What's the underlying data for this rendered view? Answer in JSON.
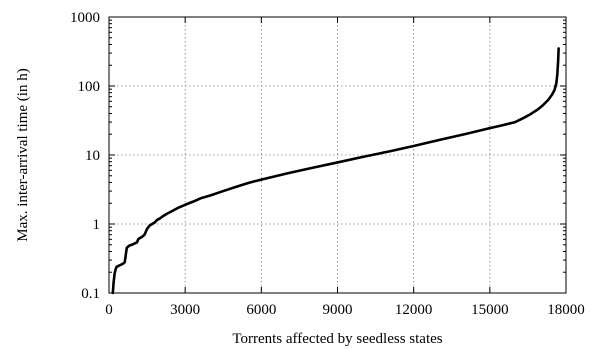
{
  "chart_data": {
    "type": "line",
    "title": "",
    "xlabel": "Torrents affected by seedless states",
    "ylabel": "Max. inter-arrival time (in h)",
    "xlim": [
      0,
      18000
    ],
    "ylim": [
      0.1,
      1000
    ],
    "yscale": "log",
    "grid": true,
    "legend": "none",
    "xticks": [
      0,
      3000,
      6000,
      9000,
      12000,
      15000,
      18000
    ],
    "xtick_labels": [
      "0",
      "3000",
      "6000",
      "9000",
      "12000",
      "15000",
      "18000"
    ],
    "yticks": [
      0.1,
      1,
      10,
      100,
      1000
    ],
    "ytick_labels": [
      "0.1",
      "1",
      "10",
      "100",
      "1000"
    ],
    "series": [
      {
        "color": "#000000",
        "x": [
          150,
          180,
          220,
          260,
          300,
          400,
          500,
          580,
          620,
          700,
          750,
          780,
          820,
          900,
          1000,
          1100,
          1150,
          1200,
          1300,
          1400,
          1500,
          1600,
          1700,
          1800,
          1900,
          2000,
          2100,
          2200,
          2300,
          2500,
          2700,
          3000,
          3300,
          3600,
          4000,
          4500,
          5000,
          5500,
          6000,
          7000,
          8000,
          9000,
          10000,
          11000,
          12000,
          13000,
          14000,
          15000,
          15500,
          16000,
          16300,
          16600,
          16900,
          17100,
          17300,
          17450,
          17550,
          17620,
          17660,
          17690,
          17710
        ],
        "values": [
          0.1,
          0.14,
          0.19,
          0.22,
          0.24,
          0.25,
          0.26,
          0.27,
          0.28,
          0.45,
          0.47,
          0.48,
          0.49,
          0.5,
          0.52,
          0.54,
          0.6,
          0.62,
          0.65,
          0.7,
          0.85,
          0.95,
          1.0,
          1.05,
          1.15,
          1.2,
          1.28,
          1.35,
          1.42,
          1.55,
          1.7,
          1.9,
          2.1,
          2.35,
          2.6,
          3.0,
          3.45,
          3.95,
          4.4,
          5.4,
          6.5,
          7.8,
          9.4,
          11.2,
          13.5,
          16.5,
          20.0,
          24.5,
          27.0,
          30.0,
          34.0,
          39.0,
          46.0,
          53.0,
          63.0,
          75.0,
          88.0,
          110.0,
          150.0,
          230.0,
          350.0
        ]
      }
    ]
  }
}
